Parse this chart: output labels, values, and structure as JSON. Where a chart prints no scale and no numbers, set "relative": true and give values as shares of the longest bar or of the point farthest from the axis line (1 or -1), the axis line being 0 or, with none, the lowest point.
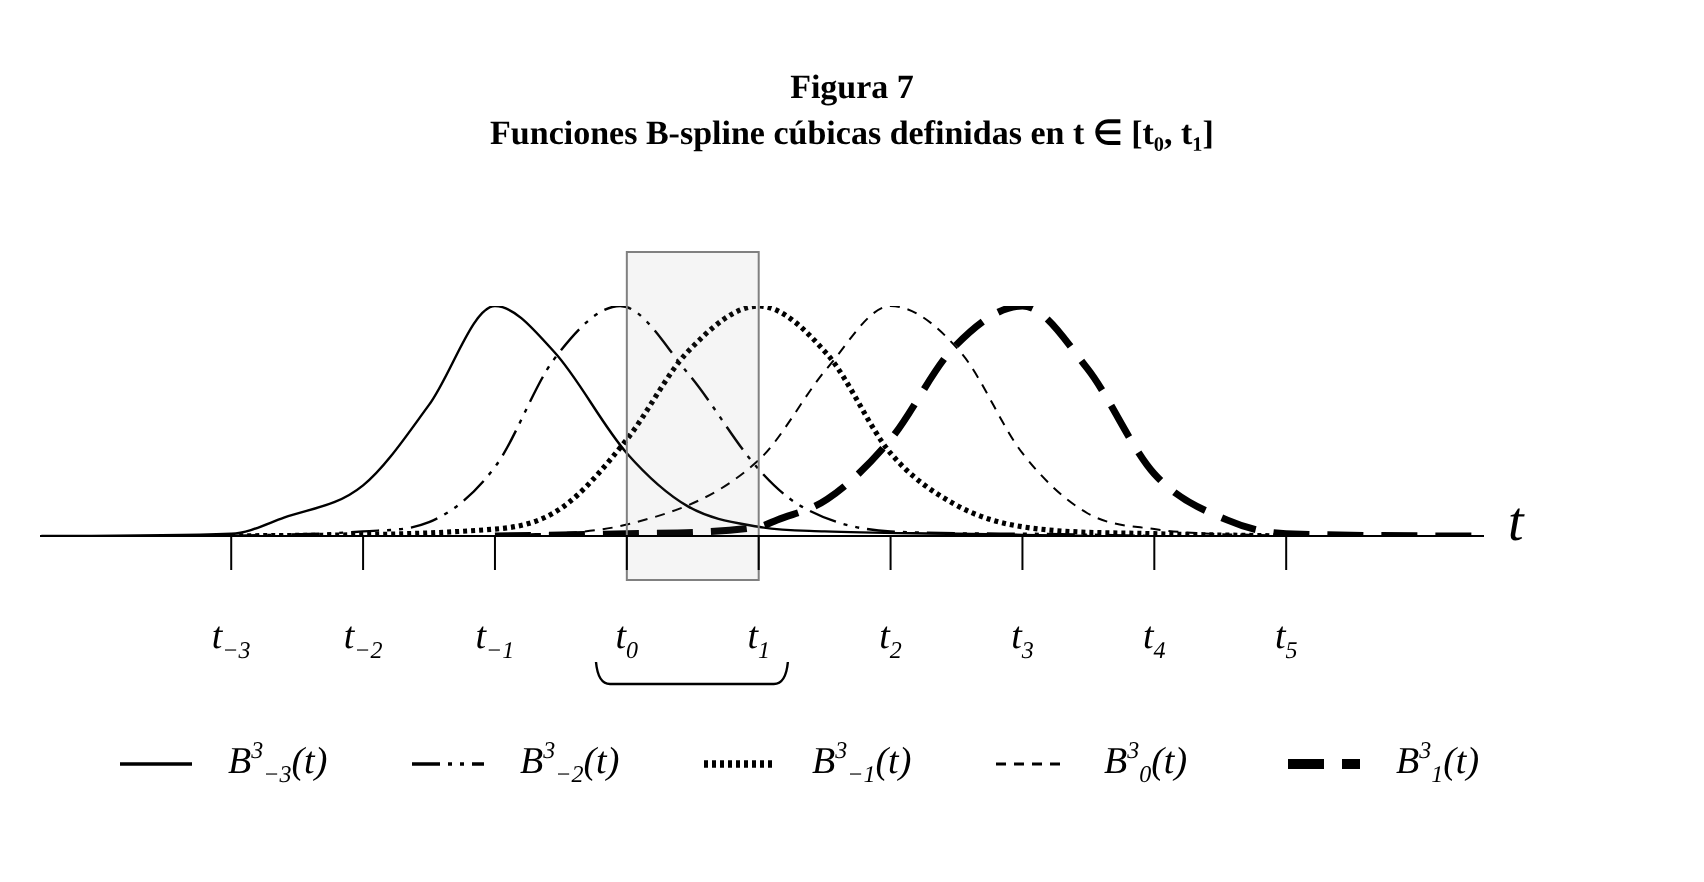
{
  "chart_data": {
    "type": "line",
    "title": "Figura 7",
    "subtitle": "Funciones B-spline cúbicas definidas en t ∈ [t₀, t₁]",
    "xlabel": "t",
    "relative": true,
    "xlim": [
      -4.45,
      6.5
    ],
    "xticks": [
      {
        "value": -3,
        "label": "t$_{−3}$"
      },
      {
        "value": -2,
        "label": "t$_{−2}$"
      },
      {
        "value": -1,
        "label": "t$_{−1}$"
      },
      {
        "value": 0,
        "label": "t$_{0}$"
      },
      {
        "value": 1,
        "label": "t$_{1}$"
      },
      {
        "value": 2,
        "label": "t$_{2}$"
      },
      {
        "value": 3,
        "label": "t$_{3}$"
      },
      {
        "value": 4,
        "label": "t$_{4}$"
      },
      {
        "value": 5,
        "label": "t$_{5}$"
      }
    ],
    "series": [
      {
        "name": "B$^{3}$$_{−3}$(t)",
        "color": "#000000",
        "line_style": "solid",
        "x": [
          -4.44,
          -3,
          -2.6,
          -2,
          -1.5,
          -1,
          -0.55,
          0,
          0.46,
          1,
          1.5,
          2.5,
          3.5
        ],
        "values": [
          0,
          0.01,
          0.08,
          0.22,
          0.57,
          1,
          0.8,
          0.36,
          0.13,
          0.04,
          0.02,
          0.01,
          0
        ]
      },
      {
        "name": "B$^{3}$$_{−2}$(t)",
        "color": "#000000",
        "line_style": "dashdot",
        "x": [
          -3,
          -2,
          -1.5,
          -1,
          -0.55,
          -0.05,
          0.46,
          1,
          1.32,
          2,
          3,
          4
        ],
        "values": [
          0,
          0.02,
          0.06,
          0.3,
          0.77,
          1,
          0.71,
          0.29,
          0.13,
          0.02,
          0.01,
          0
        ]
      },
      {
        "name": "B$^{3}$$_{−1}$(t)",
        "color": "#000000",
        "line_style": "dotted",
        "x": [
          -3,
          -1,
          -0.5,
          0,
          0.46,
          1,
          1.52,
          2,
          2.48,
          3,
          4,
          5
        ],
        "values": [
          0,
          0.03,
          0.12,
          0.42,
          0.8,
          1,
          0.79,
          0.36,
          0.14,
          0.04,
          0.01,
          0
        ]
      },
      {
        "name": "B$^{3}$$_{0}$(t)",
        "color": "#000000",
        "line_style": "dashed",
        "x": [
          -1,
          0,
          1,
          1.52,
          2,
          2.53,
          3,
          3.49,
          4,
          5
        ],
        "values": [
          0,
          0.05,
          0.33,
          0.73,
          1,
          0.8,
          0.36,
          0.1,
          0.03,
          0
        ]
      },
      {
        "name": "B$^{3}$$_{1}$(t)",
        "color": "#000000",
        "line_style": "longdashed",
        "x": [
          -1,
          0,
          1,
          1.14,
          1.52,
          2,
          2.48,
          3,
          3.49,
          4,
          4.55,
          5,
          6.47
        ],
        "values": [
          0,
          0.01,
          0.04,
          0.07,
          0.16,
          0.42,
          0.82,
          1,
          0.73,
          0.27,
          0.07,
          0.01,
          0
        ]
      }
    ],
    "bands": [
      {
        "axis": "x",
        "from": 0,
        "to": 1,
        "color": "#808080"
      }
    ],
    "grid": false,
    "legend": "bottom",
    "marker": "none"
  }
}
